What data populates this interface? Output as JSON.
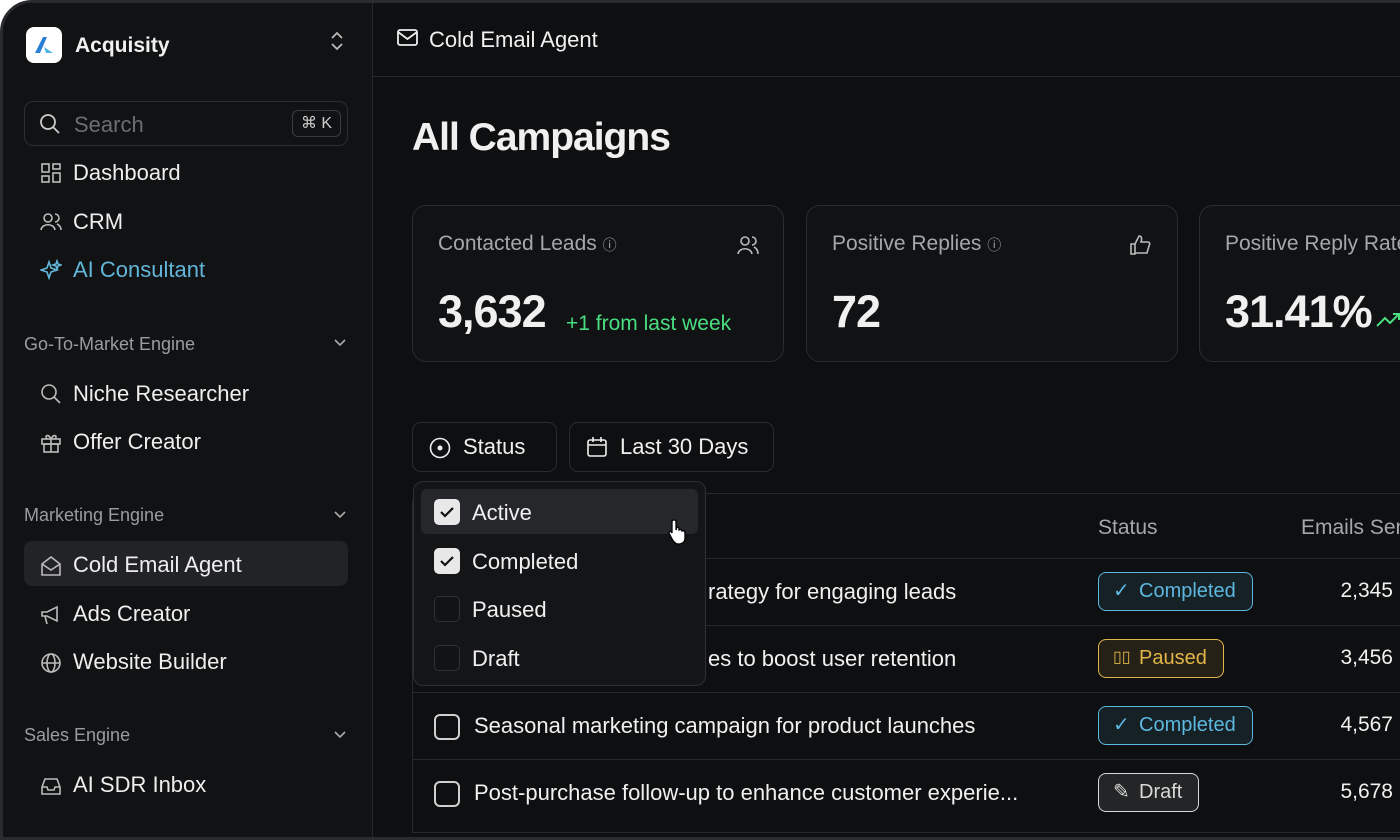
{
  "sidebar": {
    "brand": "Acquisity",
    "search": {
      "placeholder": "Search",
      "shortcut": "⌘ K"
    },
    "nav": [
      "Dashboard",
      "CRM",
      "AI Consultant"
    ],
    "sections": [
      {
        "title": "Go-To-Market Engine",
        "items": [
          "Niche Researcher",
          "Offer Creator"
        ]
      },
      {
        "title": "Marketing Engine",
        "items": [
          "Cold Email Agent",
          "Ads Creator",
          "Website Builder"
        ]
      },
      {
        "title": "Sales Engine",
        "items": [
          "AI SDR Inbox"
        ]
      }
    ]
  },
  "header": {
    "title": "Cold Email Agent"
  },
  "page": {
    "title": "All Campaigns"
  },
  "stats": [
    {
      "label": "Contacted Leads",
      "value": "3,632",
      "delta": "+1 from last week"
    },
    {
      "label": "Positive Replies",
      "value": "72"
    },
    {
      "label": "Positive Reply Rate",
      "value": "31.41%"
    }
  ],
  "filters": [
    "Status",
    "Last 30 Days"
  ],
  "status_menu": [
    {
      "label": "Active",
      "checked": true
    },
    {
      "label": "Completed",
      "checked": true
    },
    {
      "label": "Paused",
      "checked": false
    },
    {
      "label": "Draft",
      "checked": false
    }
  ],
  "table": {
    "columns": [
      "Status",
      "Emails Sent"
    ],
    "rows": [
      {
        "name": "rategy for engaging leads",
        "status": "Completed",
        "color": "#5db7df",
        "emails": "2,345"
      },
      {
        "name": "es to boost user retention",
        "status": "Paused",
        "color": "#e2b54a",
        "emails": "3,456"
      },
      {
        "name": "Seasonal marketing campaign for product launches",
        "status": "Completed",
        "color": "#5db7df",
        "emails": "4,567"
      },
      {
        "name": "Post-purchase follow-up to enhance customer experie...",
        "status": "Draft",
        "color": "#d8d8d8",
        "emails": "5,678"
      }
    ]
  }
}
